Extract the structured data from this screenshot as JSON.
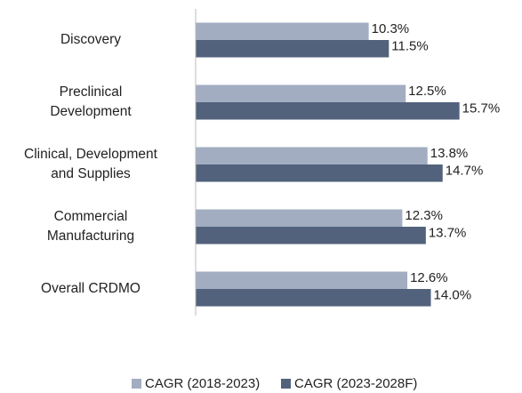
{
  "chart_data": {
    "type": "hbar",
    "categories": [
      "Discovery",
      "Preclinical\nDevelopment",
      "Clinical, Development\nand Supplies",
      "Commercial\nManufacturing",
      "Overall CRDMO"
    ],
    "series": [
      {
        "name": "CAGR (2018-2023)",
        "color": "#a2adc2",
        "values": [
          10.3,
          12.5,
          13.8,
          12.3,
          12.6
        ],
        "value_labels": [
          "10.3%",
          "12.5%",
          "13.8%",
          "12.3%",
          "12.6%"
        ]
      },
      {
        "name": "CAGR (2023-2028F)",
        "color": "#52627c",
        "values": [
          11.5,
          15.7,
          14.7,
          13.7,
          14.0
        ],
        "value_labels": [
          "11.5%",
          "15.7%",
          "14.7%",
          "13.7%",
          "14.0%"
        ]
      }
    ],
    "xlim": [
      0,
      19
    ],
    "legend": "bottom"
  }
}
